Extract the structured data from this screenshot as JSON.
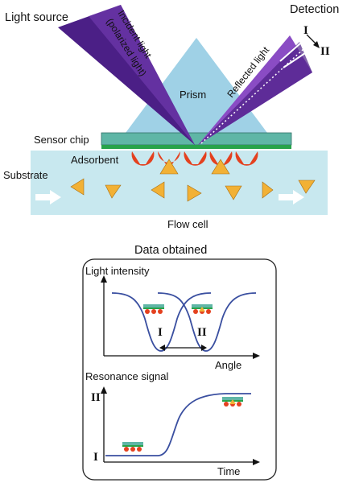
{
  "labels": {
    "light_source": "Light source",
    "detection": "Detection",
    "incident_light": "Incident light",
    "polarized_light": "(polarized light)",
    "reflected_light": "Reflected light",
    "prism": "Prism",
    "sensor_chip": "Sensor chip",
    "adsorbent": "Adsorbent",
    "substrate": "Substrate",
    "flow_cell": "Flow cell",
    "data_obtained": "Data obtained",
    "light_intensity": "Light intensity",
    "angle": "Angle",
    "resonance_signal": "Resonance signal",
    "time": "Time",
    "state_one": "I",
    "state_two": "II"
  },
  "colors": {
    "beam_dark": "#4b1f86",
    "beam_light": "#8a4cc4",
    "prism": "#9fd1e6",
    "flow_cell": "#c8e8ef",
    "chip_top": "#5fb6a6",
    "chip_gold": "#27a34a",
    "adsorbent": "#e4411f",
    "substrate": "#f2b135",
    "curve": "#3a4fa0"
  }
}
